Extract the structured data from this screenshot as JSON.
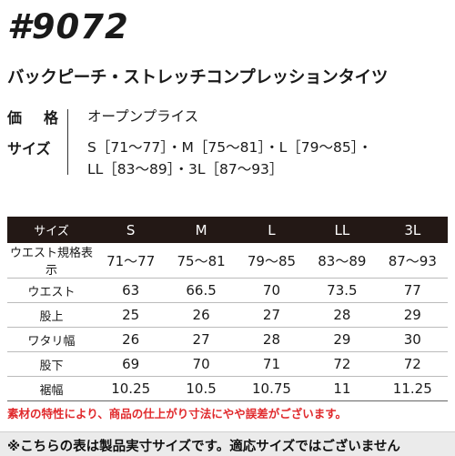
{
  "product": {
    "code": "#9072",
    "name": "バックピーチ・ストレッチコンプレッションタイツ"
  },
  "info": {
    "price_label": [
      "価",
      "格"
    ],
    "price_value": "オープンプライス",
    "size_label": "サイズ",
    "size_line1": "S［71〜77］・M［75〜81］・L［79〜85］・",
    "size_line2": "LL［83〜89］・3L［87〜93］"
  },
  "table": {
    "corner": "サイズ",
    "sizes": [
      "S",
      "M",
      "L",
      "LL",
      "3L"
    ],
    "rows": [
      {
        "label": "ウエスト規格表示",
        "values": [
          "71〜77",
          "75〜81",
          "79〜85",
          "83〜89",
          "87〜93"
        ]
      },
      {
        "label": "ウエスト",
        "values": [
          "63",
          "66.5",
          "70",
          "73.5",
          "77"
        ]
      },
      {
        "label": "股上",
        "values": [
          "25",
          "26",
          "27",
          "28",
          "29"
        ]
      },
      {
        "label": "ワタリ幅",
        "values": [
          "26",
          "27",
          "28",
          "29",
          "30"
        ]
      },
      {
        "label": "股下",
        "values": [
          "69",
          "70",
          "71",
          "72",
          "72"
        ]
      },
      {
        "label": "裾幅",
        "values": [
          "10.25",
          "10.5",
          "10.75",
          "11",
          "11.25"
        ]
      }
    ]
  },
  "notes": {
    "material": "素材の特性により、商品の仕上がり寸法にやや誤差がございます。",
    "footer": "※こちらの表は製品実寸サイズです。適応サイズではございません"
  },
  "colors": {
    "header_bg": "#231815",
    "note_red": "#e0292c"
  }
}
